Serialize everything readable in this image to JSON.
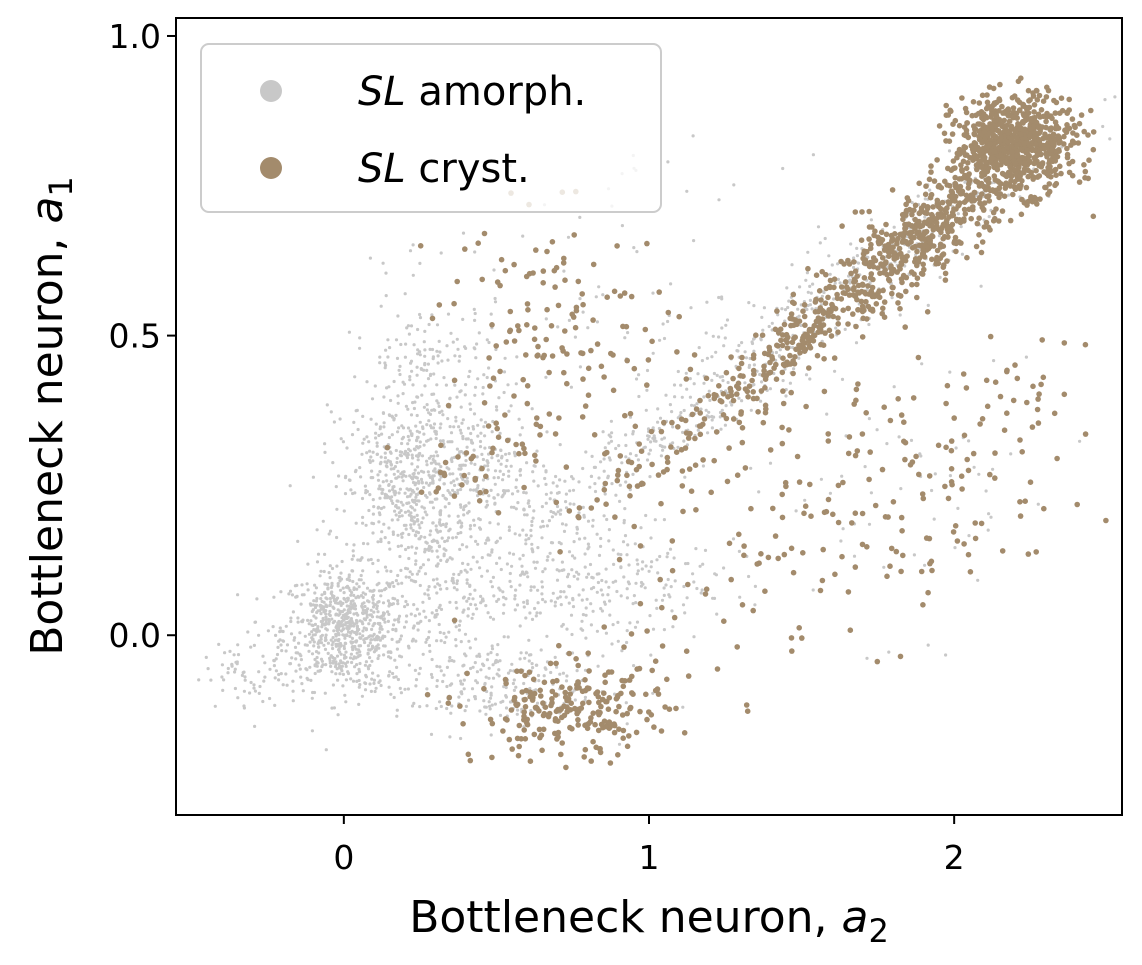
{
  "chart_data": {
    "type": "scatter",
    "title": "",
    "xlabel_main": "Bottleneck neuron, ",
    "xlabel_var": "a",
    "xlabel_sub": "2",
    "ylabel_main": "Bottleneck neuron, ",
    "ylabel_var": "a",
    "ylabel_sub": "1",
    "xlim": [
      -0.55,
      2.55
    ],
    "ylim": [
      -0.3,
      1.03
    ],
    "xticks": [
      0,
      1,
      2
    ],
    "xtick_labels": [
      "0",
      "1",
      "2"
    ],
    "yticks": [
      0.0,
      0.5,
      1.0
    ],
    "ytick_labels": [
      "0.0",
      "0.5",
      "1.0"
    ],
    "grid": false,
    "legend_position": "top-left",
    "series": [
      {
        "name_italic": "SL",
        "name_rest": " amorph.",
        "color": "#c8c8c8",
        "marker": "small-dot",
        "clusters": [
          {
            "cx": 0.0,
            "cy": 0.01,
            "sx": 0.1,
            "sy": 0.05,
            "n": 700
          },
          {
            "cx": 0.2,
            "cy": 0.24,
            "sx": 0.1,
            "sy": 0.06,
            "n": 380
          },
          {
            "cx": 0.28,
            "cy": 0.38,
            "sx": 0.13,
            "sy": 0.1,
            "n": 320
          },
          {
            "cx": 0.3,
            "cy": 0.08,
            "sx": 0.15,
            "sy": 0.06,
            "n": 260
          },
          {
            "cx": 0.45,
            "cy": 0.27,
            "sx": 0.12,
            "sy": 0.05,
            "n": 180
          },
          {
            "cx": 0.8,
            "cy": 0.1,
            "sx": 0.2,
            "sy": 0.06,
            "n": 300
          },
          {
            "cx": 0.45,
            "cy": -0.08,
            "sx": 0.2,
            "sy": 0.04,
            "n": 250
          },
          {
            "cx": -0.3,
            "cy": -0.06,
            "sx": 0.08,
            "sy": 0.03,
            "n": 70
          },
          {
            "cx": 1.0,
            "cy": 0.32,
            "sx": 0.28,
            "sy": 0.03,
            "n": 220,
            "slope": 0.3
          },
          {
            "cx": 1.7,
            "cy": 0.6,
            "sx": 0.35,
            "sy": 0.04,
            "n": 350,
            "slope": 0.35
          },
          {
            "cx": 0.95,
            "cy": 0.55,
            "sx": 0.25,
            "sy": 0.12,
            "n": 80
          },
          {
            "cx": 1.8,
            "cy": 0.25,
            "sx": 0.35,
            "sy": 0.12,
            "n": 70
          }
        ]
      },
      {
        "name_italic": "SL",
        "name_rest": " cryst.",
        "color": "#a38b6c",
        "marker": "dot",
        "clusters": [
          {
            "cx": 2.2,
            "cy": 0.82,
            "sx": 0.1,
            "sy": 0.04,
            "n": 700
          },
          {
            "cx": 1.9,
            "cy": 0.67,
            "sx": 0.18,
            "sy": 0.04,
            "n": 550,
            "slope": 0.38
          },
          {
            "cx": 1.5,
            "cy": 0.5,
            "sx": 0.15,
            "sy": 0.03,
            "n": 180,
            "slope": 0.38
          },
          {
            "cx": 1.1,
            "cy": 0.32,
            "sx": 0.22,
            "sy": 0.03,
            "n": 80,
            "slope": 0.3
          },
          {
            "cx": 0.75,
            "cy": -0.13,
            "sx": 0.16,
            "sy": 0.04,
            "n": 230
          },
          {
            "cx": 0.7,
            "cy": 0.5,
            "sx": 0.2,
            "sy": 0.1,
            "n": 140
          },
          {
            "cx": 0.45,
            "cy": 0.3,
            "sx": 0.1,
            "sy": 0.05,
            "n": 35
          },
          {
            "cx": 1.85,
            "cy": 0.25,
            "sx": 0.3,
            "sy": 0.1,
            "n": 140
          },
          {
            "cx": 1.3,
            "cy": 0.12,
            "sx": 0.3,
            "sy": 0.1,
            "n": 70
          },
          {
            "cx": 2.2,
            "cy": 0.4,
            "sx": 0.12,
            "sy": 0.05,
            "n": 25
          }
        ]
      }
    ]
  }
}
